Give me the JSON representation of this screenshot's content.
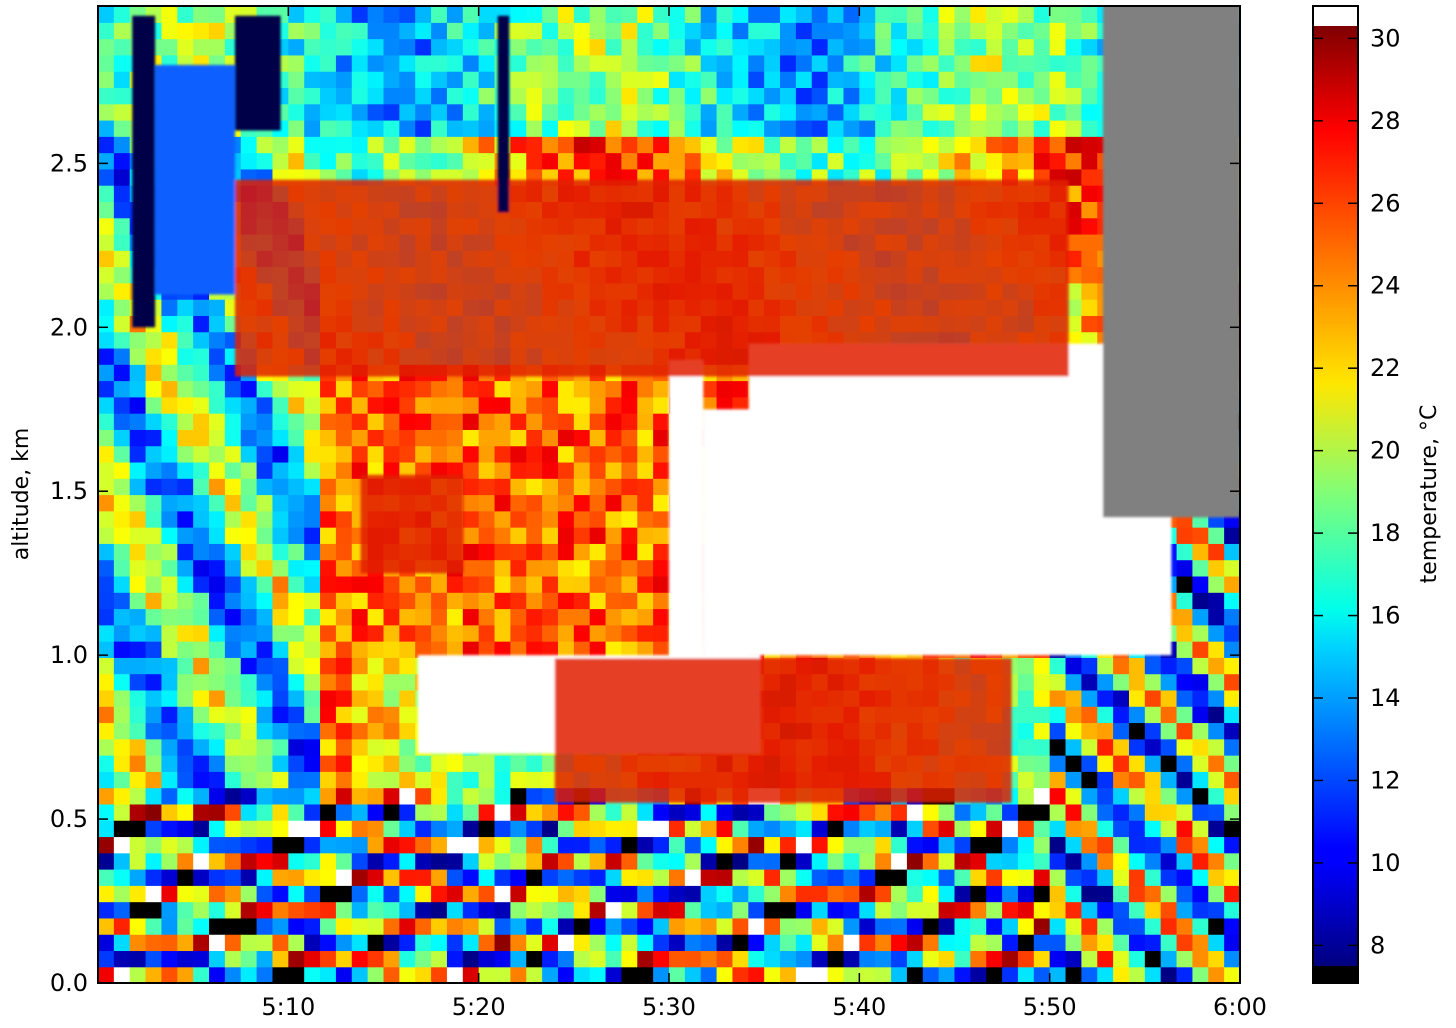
{
  "chart_data": {
    "type": "heatmap",
    "title": "",
    "xlabel": "",
    "ylabel": "altitude, km",
    "colorbar_label": "temperature, °C",
    "x_range": [
      "5:00",
      "6:00"
    ],
    "ylim": [
      0.0,
      3.0
    ],
    "clim": [
      7.5,
      30.3
    ],
    "x_ticks": [
      "5:10",
      "5:20",
      "5:30",
      "5:40",
      "5:50",
      "6:00"
    ],
    "y_ticks": [
      "0.0",
      "0.5",
      "1.0",
      "1.5",
      "2.0",
      "2.5"
    ],
    "colorbar_ticks": [
      "8",
      "10",
      "12",
      "14",
      "16",
      "18",
      "20",
      "22",
      "24",
      "26",
      "28",
      "30"
    ],
    "colormap": "jet",
    "over_color": "#ffffff",
    "under_color": "#000000",
    "missing_color": "#808080",
    "features": [
      {
        "label": "white (>30 °C)",
        "t": [
          5.5,
          5.53
        ],
        "alt": [
          0.78,
          1.9
        ]
      },
      {
        "label": "white (>30 °C)",
        "t": [
          5.53,
          5.57
        ],
        "alt": [
          0.75,
          1.75
        ]
      },
      {
        "label": "white (>30 °C)",
        "t": [
          5.57,
          5.94
        ],
        "alt": [
          1.0,
          1.95
        ]
      },
      {
        "label": "white (>30 °C)",
        "t": [
          5.28,
          5.58
        ],
        "alt": [
          0.7,
          1.0
        ]
      },
      {
        "label": "red/orange 26–29 °C",
        "t": [
          5.23,
          5.32
        ],
        "alt": [
          1.25,
          1.55
        ]
      },
      {
        "label": "red/orange 26–29 °C",
        "t": [
          5.4,
          5.8
        ],
        "alt": [
          0.55,
          0.99
        ]
      },
      {
        "label": "red/orange 26–29 °C",
        "t": [
          5.12,
          5.85
        ],
        "alt": [
          1.85,
          2.45
        ]
      },
      {
        "label": "cold column <10 °C",
        "t": [
          5.03,
          5.05
        ],
        "alt": [
          2.0,
          2.95
        ]
      },
      {
        "label": "cold column <10 °C",
        "t": [
          5.12,
          5.16
        ],
        "alt": [
          2.6,
          2.95
        ]
      },
      {
        "label": "cold column <10 °C",
        "t": [
          5.35,
          5.36
        ],
        "alt": [
          2.35,
          2.95
        ]
      },
      {
        "label": "blue layer ~13 °C",
        "t": [
          5.05,
          5.12
        ],
        "alt": [
          2.1,
          2.8
        ]
      },
      {
        "label": "no data",
        "t": [
          5.88,
          6.0
        ],
        "alt": [
          1.42,
          3.0
        ]
      }
    ]
  }
}
